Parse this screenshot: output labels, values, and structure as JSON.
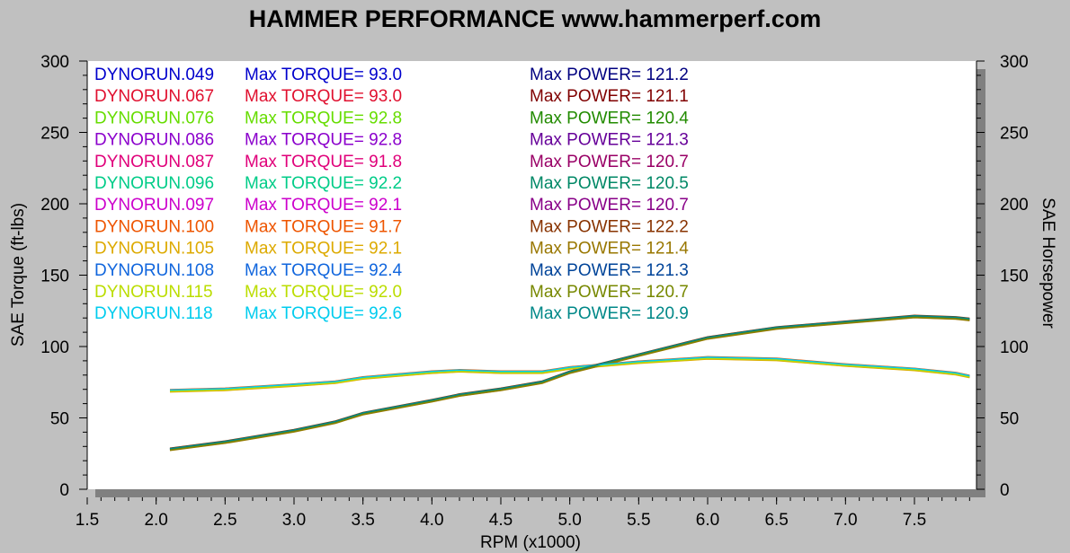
{
  "chart_data": {
    "type": "line",
    "title": "HAMMER PERFORMANCE www.hammerperf.com",
    "xlabel": "RPM (x1000)",
    "ylabel_left": "SAE Torque (ft-lbs)",
    "ylabel_right": "SAE Horsepower",
    "xlim": [
      1.5,
      7.95
    ],
    "ylim": [
      0,
      300
    ],
    "x_ticks": [
      "1.5",
      "2.0",
      "2.5",
      "3.0",
      "3.5",
      "4.0",
      "4.5",
      "5.0",
      "5.5",
      "6.0",
      "6.5",
      "7.0",
      "7.5"
    ],
    "y_ticks_left": [
      "0",
      "50",
      "100",
      "150",
      "200",
      "250",
      "300"
    ],
    "y_ticks_right": [
      "0",
      "50",
      "100",
      "150",
      "200",
      "250",
      "300"
    ],
    "grid": false,
    "legend_position": "top-left",
    "colors": {
      "background": "#c0c0c0",
      "plot_bg": "#ffffff",
      "shadow": "#808080"
    },
    "x": [
      2.1,
      2.5,
      3.0,
      3.3,
      3.5,
      4.0,
      4.2,
      4.5,
      4.8,
      5.0,
      5.5,
      6.0,
      6.5,
      7.0,
      7.5,
      7.8,
      7.9
    ],
    "torque": [
      69,
      70,
      73,
      75,
      78,
      82,
      83,
      82,
      82,
      85,
      89,
      92,
      91,
      87,
      84,
      81,
      79
    ],
    "power": [
      28,
      33,
      41,
      47,
      53,
      62,
      66,
      70,
      75,
      82,
      94,
      106,
      113,
      117,
      121,
      120,
      119
    ],
    "series": [
      {
        "name": "DYNORUN.049",
        "torque_label": "Max TORQUE= 93.0",
        "power_label": "Max POWER= 121.2",
        "color": "#0000cc",
        "power_color": "#000080",
        "offset": 0.0
      },
      {
        "name": "DYNORUN.067",
        "torque_label": "Max TORQUE= 93.0",
        "power_label": "Max POWER= 121.1",
        "color": "#e0102f",
        "power_color": "#800000",
        "offset": 0.4
      },
      {
        "name": "DYNORUN.076",
        "torque_label": "Max TORQUE= 92.8",
        "power_label": "Max POWER= 120.4",
        "color": "#66dd00",
        "power_color": "#228b00",
        "offset": -0.4
      },
      {
        "name": "DYNORUN.086",
        "torque_label": "Max TORQUE= 92.8",
        "power_label": "Max POWER= 121.3",
        "color": "#8b00cc",
        "power_color": "#660099",
        "offset": 0.6
      },
      {
        "name": "DYNORUN.087",
        "torque_label": "Max TORQUE= 91.8",
        "power_label": "Max POWER= 120.7",
        "color": "#e0007a",
        "power_color": "#990066",
        "offset": -0.6
      },
      {
        "name": "DYNORUN.096",
        "torque_label": "Max TORQUE= 92.2",
        "power_label": "Max POWER= 120.5",
        "color": "#00cc88",
        "power_color": "#008866",
        "offset": 0.2
      },
      {
        "name": "DYNORUN.097",
        "torque_label": "Max TORQUE= 92.1",
        "power_label": "Max POWER= 120.7",
        "color": "#cc00cc",
        "power_color": "#880088",
        "offset": -0.2
      },
      {
        "name": "DYNORUN.100",
        "torque_label": "Max TORQUE= 91.7",
        "power_label": "Max POWER= 122.2",
        "color": "#ee5500",
        "power_color": "#883300",
        "offset": 0.8
      },
      {
        "name": "DYNORUN.105",
        "torque_label": "Max TORQUE= 92.1",
        "power_label": "Max POWER= 121.4",
        "color": "#ddaa00",
        "power_color": "#997700",
        "offset": -0.8
      },
      {
        "name": "DYNORUN.108",
        "torque_label": "Max TORQUE= 92.4",
        "power_label": "Max POWER= 121.3",
        "color": "#1166dd",
        "power_color": "#004499",
        "offset": 0.3
      },
      {
        "name": "DYNORUN.115",
        "torque_label": "Max TORQUE= 92.0",
        "power_label": "Max POWER= 120.7",
        "color": "#bbdd00",
        "power_color": "#778800",
        "offset": -0.3
      },
      {
        "name": "DYNORUN.118",
        "torque_label": "Max TORQUE= 92.6",
        "power_label": "Max POWER= 120.9",
        "color": "#00ccee",
        "power_color": "#008888",
        "offset": 0.5
      }
    ]
  }
}
